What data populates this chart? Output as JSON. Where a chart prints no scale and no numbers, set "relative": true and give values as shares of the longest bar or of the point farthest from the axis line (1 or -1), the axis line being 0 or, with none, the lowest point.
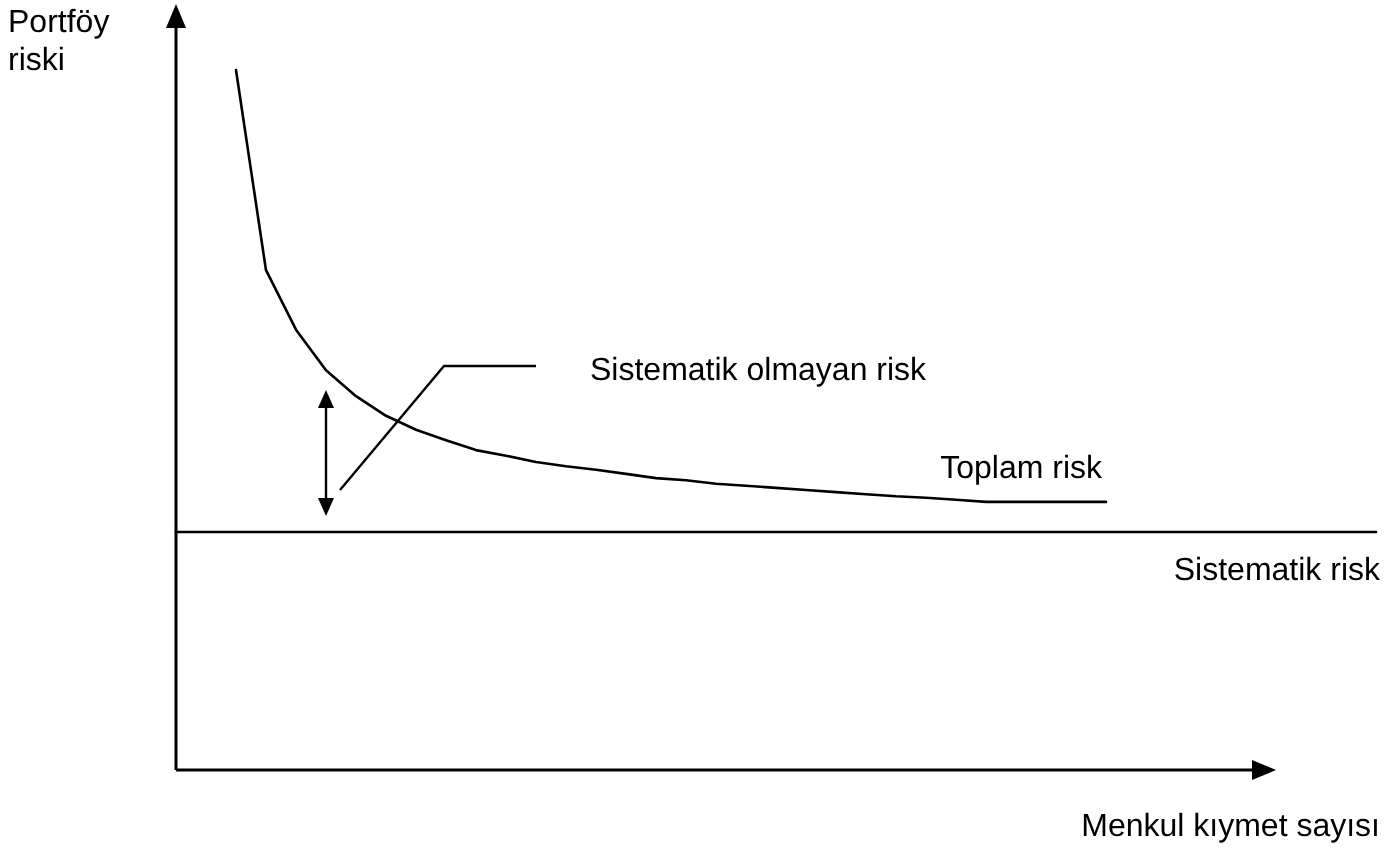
{
  "chart_data": {
    "type": "line",
    "relative": true,
    "ylabel": "Portföy riski",
    "xlabel": "Menkul kıymet sayısı",
    "categories": [
      null,
      null,
      null,
      null,
      null,
      null,
      null,
      null,
      null,
      null,
      null,
      null,
      null,
      null,
      null,
      null,
      null,
      null,
      null,
      null,
      null,
      null,
      null,
      null,
      null,
      null,
      null,
      null,
      null,
      null,
      null,
      null,
      null,
      null,
      null,
      null,
      null,
      null,
      null,
      null,
      null
    ],
    "series": [
      {
        "name": "Toplam risk",
        "color": "#000000",
        "values": [
          null,
          null,
          1,
          0.714,
          0.629,
          0.571,
          0.534,
          0.506,
          0.486,
          0.471,
          0.457,
          0.449,
          0.44,
          0.434,
          0.429,
          0.423,
          0.417,
          0.414,
          0.409,
          0.406,
          0.403,
          0.4,
          0.397,
          0.394,
          0.391,
          0.389,
          0.386,
          0.383,
          0.383,
          0.383,
          0.383,
          0.383,
          null,
          null,
          null,
          null,
          null,
          null,
          null,
          null,
          null
        ]
      },
      {
        "name": "Sistematik risk",
        "color": "#000000",
        "values": [
          0.34,
          0.34,
          0.34,
          0.34,
          0.34,
          0.34,
          0.34,
          0.34,
          0.34,
          0.34,
          0.34,
          0.34,
          0.34,
          0.34,
          0.34,
          0.34,
          0.34,
          0.34,
          0.34,
          0.34,
          0.34,
          0.34,
          0.34,
          0.34,
          0.34,
          0.34,
          0.34,
          0.34,
          0.34,
          0.34,
          0.34,
          0.34,
          0.34,
          0.34,
          0.34,
          0.34,
          0.34,
          0.34,
          0.34,
          0.34,
          0.34
        ]
      }
    ],
    "annotations": [
      "Sistematik olmayan risk"
    ]
  }
}
